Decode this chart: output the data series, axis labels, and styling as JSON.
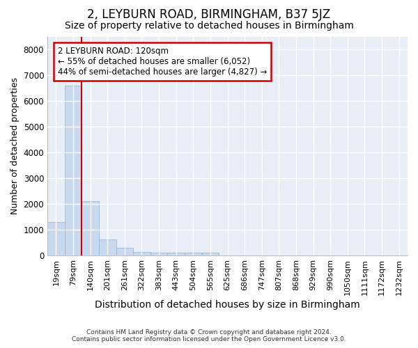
{
  "title": "2, LEYBURN ROAD, BIRMINGHAM, B37 5JZ",
  "subtitle": "Size of property relative to detached houses in Birmingham",
  "xlabel": "Distribution of detached houses by size in Birmingham",
  "ylabel": "Number of detached properties",
  "bar_color": "#c8d8ee",
  "bar_edge_color": "#8ab4d4",
  "background_color": "#e8eef8",
  "grid_color": "#ffffff",
  "categories": [
    "19sqm",
    "79sqm",
    "140sqm",
    "201sqm",
    "261sqm",
    "322sqm",
    "383sqm",
    "443sqm",
    "504sqm",
    "565sqm",
    "625sqm",
    "686sqm",
    "747sqm",
    "807sqm",
    "868sqm",
    "929sqm",
    "990sqm",
    "1050sqm",
    "1111sqm",
    "1172sqm",
    "1232sqm"
  ],
  "values": [
    1300,
    6600,
    2100,
    620,
    300,
    140,
    100,
    100,
    100,
    100,
    0,
    0,
    0,
    0,
    0,
    0,
    0,
    0,
    0,
    0,
    0
  ],
  "ylim": [
    0,
    8500
  ],
  "yticks": [
    0,
    1000,
    2000,
    3000,
    4000,
    5000,
    6000,
    7000,
    8000
  ],
  "red_line_x": 1.5,
  "annotation_line1": "2 LEYBURN ROAD: 120sqm",
  "annotation_line2": "← 55% of detached houses are smaller (6,052)",
  "annotation_line3": "44% of semi-detached houses are larger (4,827) →",
  "annotation_border_color": "#cc0000",
  "footer_line1": "Contains HM Land Registry data © Crown copyright and database right 2024.",
  "footer_line2": "Contains public sector information licensed under the Open Government Licence v3.0.",
  "red_line_color": "#cc0000",
  "title_fontsize": 12,
  "subtitle_fontsize": 10,
  "tick_fontsize": 8,
  "ylabel_fontsize": 9,
  "xlabel_fontsize": 10
}
